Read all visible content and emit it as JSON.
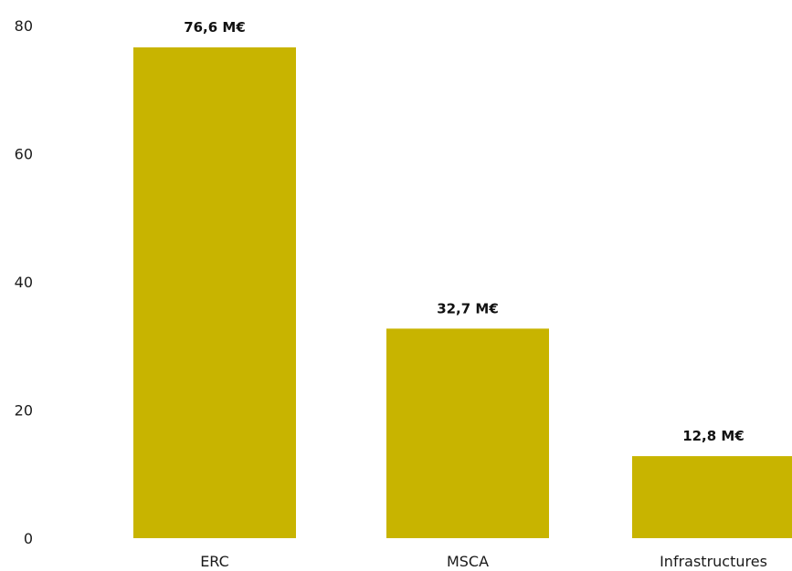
{
  "chart_data": {
    "type": "bar",
    "categories": [
      "ERC",
      "MSCA",
      "Infrastructures"
    ],
    "values": [
      76.6,
      32.7,
      12.8
    ],
    "data_labels": [
      "76,6 M€",
      "32,7 M€",
      "12,8 M€"
    ],
    "yticks": [
      0,
      20,
      40,
      60,
      80
    ],
    "ylim": [
      0,
      80
    ],
    "grid": false,
    "legend": "none",
    "bar_color": "#c8b400"
  }
}
